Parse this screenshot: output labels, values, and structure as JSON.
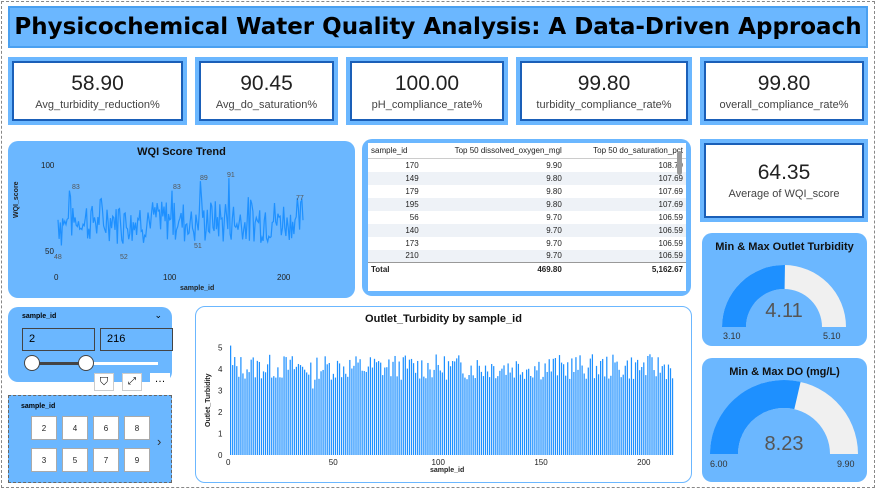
{
  "title": "Physicochemical Water Quality Analysis: A Data-Driven Approach",
  "kpis": [
    {
      "value": "58.90",
      "label": "Avg_turbidity_reduction%"
    },
    {
      "value": "90.45",
      "label": "Avg_do_saturation%"
    },
    {
      "value": "100.00",
      "label": "pH_compliance_rate%"
    },
    {
      "value": "99.80",
      "label": "turbidity_compliance_rate%"
    },
    {
      "value": "99.80",
      "label": "overall_compliance_rate%"
    }
  ],
  "wqi_avg": {
    "value": "64.35",
    "label": "Average of WQI_score"
  },
  "wqi_chart": {
    "title": "WQI Score Trend",
    "xlabel": "sample_id",
    "ylabel": "WQI_score",
    "yticks": [
      "100",
      "50"
    ],
    "xticks": [
      "0",
      "100",
      "200"
    ],
    "peak_labels": [
      "83",
      "83",
      "89",
      "91",
      "77",
      "48",
      "52",
      "51"
    ]
  },
  "table": {
    "headers": [
      "sample_id",
      "Top 50 dissolved_oxygen_mgl",
      "Top 50 do_saturation_pct"
    ],
    "rows": [
      [
        "170",
        "9.90",
        "108.79"
      ],
      [
        "149",
        "9.80",
        "107.69"
      ],
      [
        "179",
        "9.80",
        "107.69"
      ],
      [
        "195",
        "9.80",
        "107.69"
      ],
      [
        "56",
        "9.70",
        "106.59"
      ],
      [
        "140",
        "9.70",
        "106.59"
      ],
      [
        "173",
        "9.70",
        "106.59"
      ],
      [
        "210",
        "9.70",
        "106.59"
      ]
    ],
    "total": [
      "Total",
      "469.80",
      "5,162.67"
    ]
  },
  "slicer": {
    "label": "sample_id",
    "min": "2",
    "max": "216"
  },
  "tile_slicer": {
    "label": "sample_id",
    "tiles": [
      "2",
      "4",
      "6",
      "8",
      "3",
      "5",
      "7",
      "9"
    ]
  },
  "bar_chart": {
    "title": "Outlet_Turbidity by sample_id",
    "xlabel": "sample_id",
    "ylabel": "Outlet_Turbidity",
    "yticks": [
      "0",
      "1",
      "2",
      "3",
      "4",
      "5"
    ],
    "xticks": [
      "0",
      "50",
      "100",
      "150",
      "200"
    ]
  },
  "gauge_turbidity": {
    "title": "Min & Max Outlet Turbidity",
    "value": "4.11",
    "min": "3.10",
    "max": "5.10",
    "fraction": 0.505
  },
  "gauge_do": {
    "title": "Min & Max DO (mg/L)",
    "value": "8.23",
    "min": "6.00",
    "max": "9.90",
    "fraction": 0.572
  },
  "colors": {
    "accent": "#6bb7ff",
    "series": "#1e90ff",
    "gauge_track": "#f0f0f0"
  },
  "chart_data": [
    {
      "type": "line",
      "title": "WQI Score Trend",
      "xlabel": "sample_id",
      "ylabel": "WQI_score",
      "x_range": [
        1,
        216
      ],
      "ylim": [
        40,
        100
      ],
      "y_range_observed": [
        48,
        91
      ],
      "labeled_points": [
        83,
        83,
        89,
        91,
        77,
        48,
        52,
        51
      ]
    },
    {
      "type": "bar",
      "title": "Outlet_Turbidity by sample_id",
      "xlabel": "sample_id",
      "ylabel": "Outlet_Turbidity",
      "x_range": [
        1,
        216
      ],
      "ylim": [
        0,
        5.5
      ],
      "y_range_observed": [
        3.1,
        5.1
      ]
    }
  ]
}
